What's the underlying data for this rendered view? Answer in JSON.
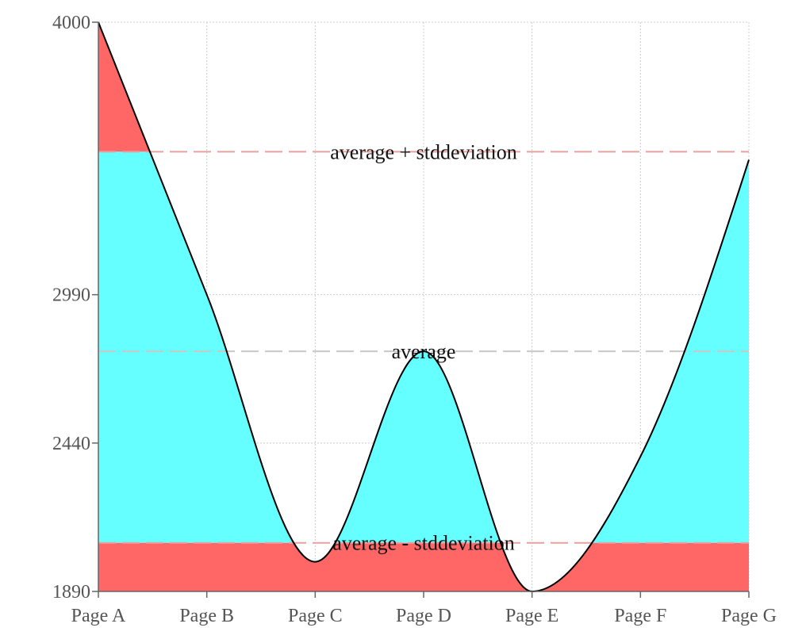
{
  "chart_data": {
    "type": "area",
    "title": "",
    "xlabel": "",
    "ylabel": "",
    "categories": [
      "Page A",
      "Page B",
      "Page C",
      "Page D",
      "Page E",
      "Page F",
      "Page G"
    ],
    "series": [
      {
        "values": [
          4000,
          2990,
          2000,
          2780,
          1890,
          2390,
          3490
        ]
      }
    ],
    "ylim": [
      1890,
      4000
    ],
    "yticks": [
      "4000",
      "2990",
      "2440",
      "1890"
    ],
    "reference_lines": [
      {
        "label": "average + stddeviation",
        "value": 3520,
        "color": "#e8a0a0"
      },
      {
        "label": "average",
        "value": 2780,
        "color": "#c8c8c8"
      },
      {
        "label": "average - stddeviation",
        "value": 2070,
        "color": "#e8a0a0"
      }
    ],
    "colors": {
      "inside_band": "#66ffff",
      "outside_band": "#ff6666",
      "line": "#000000",
      "grid": "#cccccc",
      "axis": "#666666"
    },
    "grid": true,
    "curve": "monotone"
  }
}
